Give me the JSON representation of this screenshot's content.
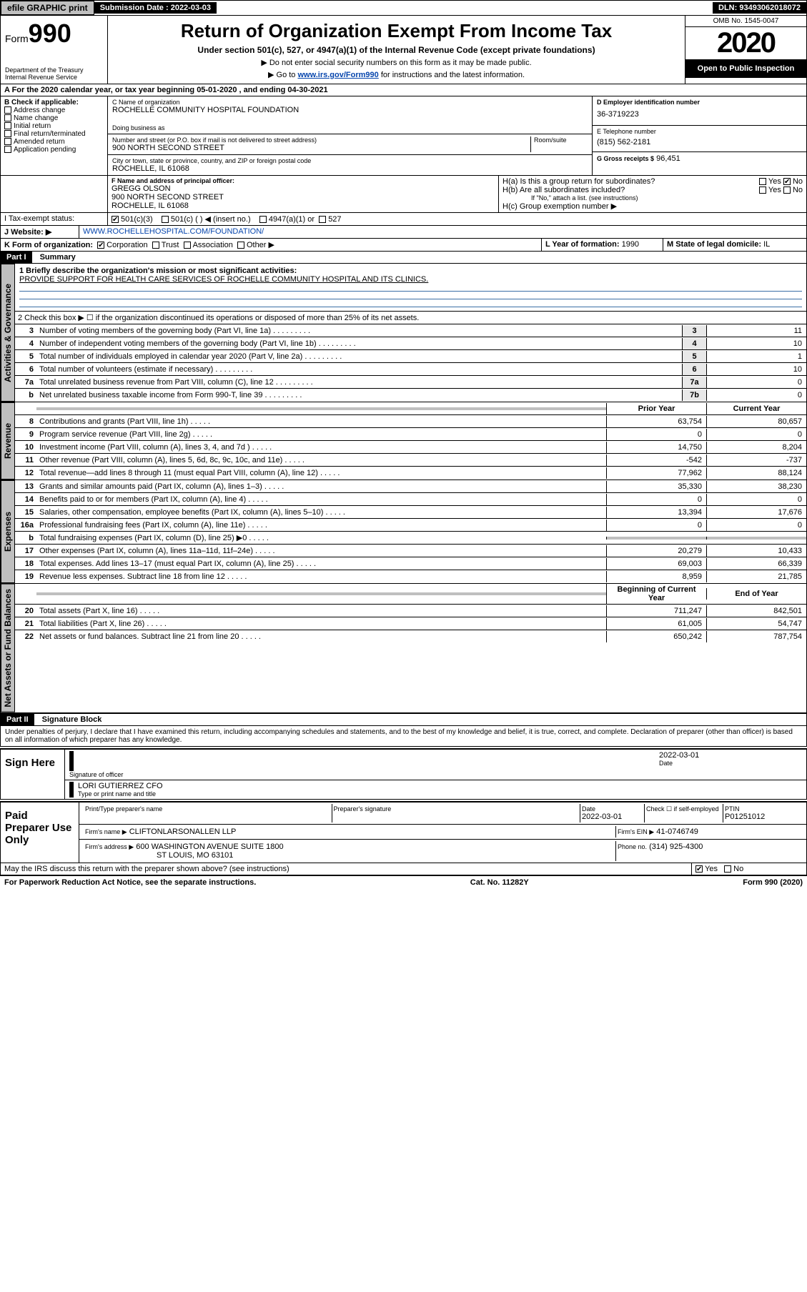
{
  "topbar": {
    "efile": "efile GRAPHIC print",
    "sub_lbl": "Submission Date : 2022-03-03",
    "dln": "DLN: 93493062018072"
  },
  "header": {
    "form": "Form",
    "formno": "990",
    "dept": "Department of the Treasury",
    "irs": "Internal Revenue Service",
    "title": "Return of Organization Exempt From Income Tax",
    "sub": "Under section 501(c), 527, or 4947(a)(1) of the Internal Revenue Code (except private foundations)",
    "note1": "▶ Do not enter social security numbers on this form as it may be made public.",
    "note2_pre": "▶ Go to ",
    "note2_link": "www.irs.gov/Form990",
    "note2_post": " for instructions and the latest information.",
    "omb": "OMB No. 1545-0047",
    "year": "2020",
    "otpi": "Open to Public Inspection"
  },
  "linea": "A For the 2020 calendar year, or tax year beginning 05-01-2020    , and ending 04-30-2021",
  "boxB": {
    "hdr": "B Check if applicable:",
    "o1": "Address change",
    "o2": "Name change",
    "o3": "Initial return",
    "o4": "Final return/terminated",
    "o5": "Amended return",
    "o6": "Application pending"
  },
  "boxC": {
    "lbl_name": "C Name of organization",
    "name": "ROCHELLE COMMUNITY HOSPITAL FOUNDATION",
    "dba_lbl": "Doing business as",
    "addr_lbl": "Number and street (or P.O. box if mail is not delivered to street address)",
    "room_lbl": "Room/suite",
    "addr": "900 NORTH SECOND STREET",
    "city_lbl": "City or town, state or province, country, and ZIP or foreign postal code",
    "city": "ROCHELLE, IL  61068"
  },
  "boxD": {
    "lbl": "D Employer identification number",
    "val": "36-3719223"
  },
  "boxE": {
    "lbl": "E Telephone number",
    "val": "(815) 562-2181"
  },
  "boxG": {
    "lbl": "G Gross receipts $",
    "val": "96,451"
  },
  "boxF": {
    "lbl": "F Name and address of principal officer:",
    "name": "GREGG OLSON",
    "addr": "900 NORTH SECOND STREET",
    "city": "ROCHELLE, IL  61068"
  },
  "boxH": {
    "ha": "H(a)  Is this a group return for subordinates?",
    "hb": "H(b)  Are all subordinates included?",
    "hb_note": "If \"No,\" attach a list. (see instructions)",
    "hc": "H(c)  Group exemption number ▶",
    "yes": "Yes",
    "no": "No"
  },
  "boxI": {
    "lbl": "I Tax-exempt status:",
    "o1": "501(c)(3)",
    "o2": "501(c) (  ) ◀ (insert no.)",
    "o3": "4947(a)(1) or",
    "o4": "527"
  },
  "boxJ": {
    "lbl": "J   Website: ▶",
    "val": "WWW.ROCHELLEHOSPITAL.COM/FOUNDATION/"
  },
  "boxK": {
    "lbl": "K Form of organization:",
    "o1": "Corporation",
    "o2": "Trust",
    "o3": "Association",
    "o4": "Other ▶"
  },
  "boxL": {
    "lbl": "L Year of formation:",
    "val": "1990"
  },
  "boxM": {
    "lbl": "M State of legal domicile:",
    "val": "IL"
  },
  "part1": {
    "hdr": "Part I",
    "title": "Summary",
    "l1_lbl": "1   Briefly describe the organization's mission or most significant activities:",
    "l1_val": "PROVIDE SUPPORT FOR HEALTH CARE SERVICES OF ROCHELLE COMMUNITY HOSPITAL AND ITS CLINICS.",
    "l2": "2    Check this box ▶ ☐  if the organization discontinued its operations or disposed of more than 25% of its net assets.",
    "rows_gov": [
      {
        "n": "3",
        "t": "Number of voting members of the governing body (Part VI, line 1a)",
        "b": "3",
        "v": "11"
      },
      {
        "n": "4",
        "t": "Number of independent voting members of the governing body (Part VI, line 1b)",
        "b": "4",
        "v": "10"
      },
      {
        "n": "5",
        "t": "Total number of individuals employed in calendar year 2020 (Part V, line 2a)",
        "b": "5",
        "v": "1"
      },
      {
        "n": "6",
        "t": "Total number of volunteers (estimate if necessary)",
        "b": "6",
        "v": "10"
      },
      {
        "n": "7a",
        "t": "Total unrelated business revenue from Part VIII, column (C), line 12",
        "b": "7a",
        "v": "0"
      },
      {
        "n": "b",
        "t": "Net unrelated business taxable income from Form 990-T, line 39",
        "b": "7b",
        "v": "0"
      }
    ],
    "col_prior": "Prior Year",
    "col_curr": "Current Year",
    "rows_rev": [
      {
        "n": "8",
        "t": "Contributions and grants (Part VIII, line 1h)",
        "p": "63,754",
        "c": "80,657"
      },
      {
        "n": "9",
        "t": "Program service revenue (Part VIII, line 2g)",
        "p": "0",
        "c": "0"
      },
      {
        "n": "10",
        "t": "Investment income (Part VIII, column (A), lines 3, 4, and 7d )",
        "p": "14,750",
        "c": "8,204"
      },
      {
        "n": "11",
        "t": "Other revenue (Part VIII, column (A), lines 5, 6d, 8c, 9c, 10c, and 11e)",
        "p": "-542",
        "c": "-737"
      },
      {
        "n": "12",
        "t": "Total revenue—add lines 8 through 11 (must equal Part VIII, column (A), line 12)",
        "p": "77,962",
        "c": "88,124"
      }
    ],
    "rows_exp": [
      {
        "n": "13",
        "t": "Grants and similar amounts paid (Part IX, column (A), lines 1–3)",
        "p": "35,330",
        "c": "38,230"
      },
      {
        "n": "14",
        "t": "Benefits paid to or for members (Part IX, column (A), line 4)",
        "p": "0",
        "c": "0"
      },
      {
        "n": "15",
        "t": "Salaries, other compensation, employee benefits (Part IX, column (A), lines 5–10)",
        "p": "13,394",
        "c": "17,676"
      },
      {
        "n": "16a",
        "t": "Professional fundraising fees (Part IX, column (A), line 11e)",
        "p": "0",
        "c": "0"
      },
      {
        "n": "b",
        "t": "Total fundraising expenses (Part IX, column (D), line 25) ▶0",
        "p": "",
        "c": "",
        "shade": true
      },
      {
        "n": "17",
        "t": "Other expenses (Part IX, column (A), lines 11a–11d, 11f–24e)",
        "p": "20,279",
        "c": "10,433"
      },
      {
        "n": "18",
        "t": "Total expenses. Add lines 13–17 (must equal Part IX, column (A), line 25)",
        "p": "69,003",
        "c": "66,339"
      },
      {
        "n": "19",
        "t": "Revenue less expenses. Subtract line 18 from line 12",
        "p": "8,959",
        "c": "21,785"
      }
    ],
    "col_beg": "Beginning of Current Year",
    "col_end": "End of Year",
    "rows_net": [
      {
        "n": "20",
        "t": "Total assets (Part X, line 16)",
        "p": "711,247",
        "c": "842,501"
      },
      {
        "n": "21",
        "t": "Total liabilities (Part X, line 26)",
        "p": "61,005",
        "c": "54,747"
      },
      {
        "n": "22",
        "t": "Net assets or fund balances. Subtract line 21 from line 20",
        "p": "650,242",
        "c": "787,754"
      }
    ],
    "tab_gov": "Activities & Governance",
    "tab_rev": "Revenue",
    "tab_exp": "Expenses",
    "tab_net": "Net Assets or Fund Balances"
  },
  "part2": {
    "hdr": "Part II",
    "title": "Signature Block",
    "decl": "Under penalties of perjury, I declare that I have examined this return, including accompanying schedules and statements, and to the best of my knowledge and belief, it is true, correct, and complete. Declaration of preparer (other than officer) is based on all information of which preparer has any knowledge."
  },
  "sign": {
    "lbl": "Sign Here",
    "sig_lbl": "Signature of officer",
    "date_lbl": "Date",
    "date": "2022-03-01",
    "name": "LORI GUTIERREZ CFO",
    "name_lbl": "Type or print name and title"
  },
  "preparer": {
    "lbl": "Paid Preparer Use Only",
    "c1": "Print/Type preparer's name",
    "c2": "Preparer's signature",
    "c3": "Date",
    "date": "2022-03-01",
    "c4_lbl": "Check ☐ if self-employed",
    "ptin_lbl": "PTIN",
    "ptin": "P01251012",
    "firm_lbl": "Firm's name    ▶",
    "firm": "CLIFTONLARSONALLEN LLP",
    "ein_lbl": "Firm's EIN ▶",
    "ein": "41-0746749",
    "addr_lbl": "Firm's address ▶",
    "addr1": "600 WASHINGTON AVENUE SUITE 1800",
    "addr2": "ST LOUIS, MO  63101",
    "phone_lbl": "Phone no.",
    "phone": "(314) 925-4300"
  },
  "discuss": {
    "txt": "May the IRS discuss this return with the preparer shown above? (see instructions)",
    "yes": "Yes",
    "no": "No"
  },
  "footer": {
    "left": "For Paperwork Reduction Act Notice, see the separate instructions.",
    "mid": "Cat. No. 11282Y",
    "right": "Form 990 (2020)"
  }
}
